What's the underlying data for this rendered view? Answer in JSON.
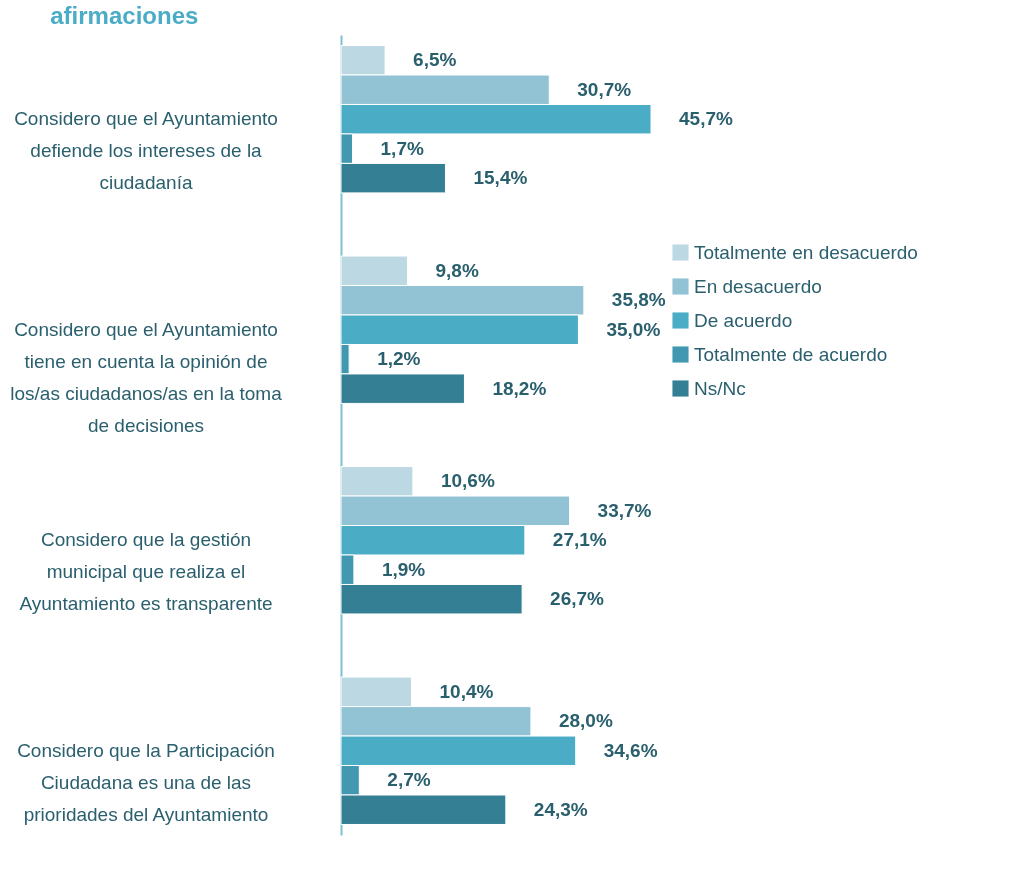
{
  "chart_data": {
    "type": "bar",
    "orientation": "horizontal",
    "title": "afirmaciones",
    "categories": [
      "Considero que el Ayuntamiento defiende los intereses de la ciudadanía",
      "Considero que el Ayuntamiento tiene en cuenta la opinión de los/as ciudadanos/as en la toma de decisiones",
      "Considero que la gestión municipal que realiza el Ayuntamiento es transparente",
      "Considero que la Participación Ciudadana es una de las prioridades del Ayuntamiento"
    ],
    "series": [
      {
        "name": "Totalmente en desacuerdo",
        "color": "#bcd8e2",
        "values": [
          6.5,
          9.8,
          10.6,
          10.4
        ],
        "value_labels": [
          "6,5%",
          "9,8%",
          "10,6%",
          "10,4%"
        ]
      },
      {
        "name": "En desacuerdo",
        "color": "#92c3d4",
        "values": [
          30.7,
          35.8,
          33.7,
          28.0
        ],
        "value_labels": [
          "30,7%",
          "35,8%",
          "33,7%",
          "28,0%"
        ]
      },
      {
        "name": "De acuerdo",
        "color": "#4bacc6",
        "values": [
          45.7,
          35.0,
          27.1,
          34.6
        ],
        "value_labels": [
          "45,7%",
          "35,0%",
          "27,1%",
          "34,6%"
        ]
      },
      {
        "name": "Totalmente de acuerdo",
        "color": "#4198b0",
        "values": [
          1.7,
          1.2,
          1.9,
          2.7
        ],
        "value_labels": [
          "1,7%",
          "1,2%",
          "1,9%",
          "2,7%"
        ]
      },
      {
        "name": "Ns/Nc",
        "color": "#357f94",
        "values": [
          15.4,
          18.2,
          26.7,
          24.3
        ],
        "value_labels": [
          "15,4%",
          "18,2%",
          "26,7%",
          "24,3%"
        ]
      }
    ],
    "legend": "right"
  }
}
